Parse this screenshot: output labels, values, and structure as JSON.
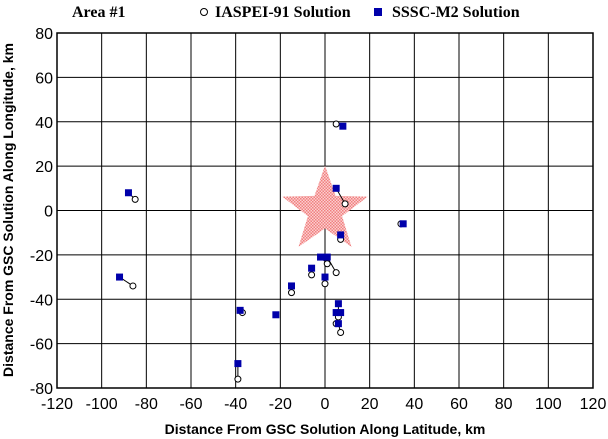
{
  "chart_data": {
    "type": "scatter",
    "title": "Area #1",
    "xlabel": "Distance From GSC Solution Along Latitude, km",
    "ylabel": "Distance From GSC Solution Along Longitude, km",
    "xlim": [
      -120,
      120
    ],
    "ylim": [
      -80,
      80
    ],
    "xticks": [
      "-120",
      "-100",
      "-80",
      "-60",
      "-40",
      "-20",
      "0",
      "20",
      "40",
      "60",
      "80",
      "100",
      "120"
    ],
    "yticks": [
      "80",
      "60",
      "40",
      "20",
      "0",
      "-20",
      "-40",
      "-60",
      "-80"
    ],
    "grid": true,
    "legend_position": "top",
    "reference_marker": {
      "shape": "star",
      "x": 0,
      "y": 0,
      "color": "#f08080"
    },
    "series": [
      {
        "name": "IASPEI-91 Solution",
        "marker": "open-circle",
        "color": "#000000",
        "points": [
          [
            5,
            39
          ],
          [
            -85,
            5
          ],
          [
            9,
            3
          ],
          [
            7,
            -13
          ],
          [
            1,
            -24
          ],
          [
            5,
            -28
          ],
          [
            -6,
            -29
          ],
          [
            0,
            -33
          ],
          [
            -15,
            -37
          ],
          [
            -86,
            -34
          ],
          [
            -37,
            -46
          ],
          [
            6,
            -48
          ],
          [
            5,
            -51
          ],
          [
            7,
            -55
          ],
          [
            -39,
            -76
          ],
          [
            34,
            -6
          ]
        ]
      },
      {
        "name": "SSSC-M2 Solution",
        "marker": "filled-square",
        "color": "#0000aa",
        "points": [
          [
            8,
            38
          ],
          [
            -88,
            8
          ],
          [
            5,
            10
          ],
          [
            7,
            -11
          ],
          [
            1,
            -21
          ],
          [
            -2,
            -21
          ],
          [
            -6,
            -26
          ],
          [
            0,
            -30
          ],
          [
            -15,
            -34
          ],
          [
            -92,
            -30
          ],
          [
            -38,
            -45
          ],
          [
            6,
            -42
          ],
          [
            7,
            -46
          ],
          [
            5,
            -46
          ],
          [
            6,
            -51
          ],
          [
            -22,
            -47
          ],
          [
            -39,
            -69
          ],
          [
            35,
            -6
          ]
        ]
      }
    ],
    "pairs": [
      [
        [
          5,
          39
        ],
        [
          8,
          38
        ]
      ],
      [
        [
          -85,
          5
        ],
        [
          -88,
          8
        ]
      ],
      [
        [
          9,
          3
        ],
        [
          5,
          10
        ]
      ],
      [
        [
          7,
          -13
        ],
        [
          7,
          -11
        ]
      ],
      [
        [
          1,
          -24
        ],
        [
          -2,
          -21
        ]
      ],
      [
        [
          5,
          -28
        ],
        [
          1,
          -21
        ]
      ],
      [
        [
          -6,
          -29
        ],
        [
          -6,
          -26
        ]
      ],
      [
        [
          0,
          -33
        ],
        [
          0,
          -30
        ]
      ],
      [
        [
          -15,
          -37
        ],
        [
          -15,
          -34
        ]
      ],
      [
        [
          -86,
          -34
        ],
        [
          -92,
          -30
        ]
      ],
      [
        [
          -37,
          -46
        ],
        [
          -38,
          -45
        ]
      ],
      [
        [
          6,
          -48
        ],
        [
          6,
          -42
        ]
      ],
      [
        [
          5,
          -51
        ],
        [
          7,
          -46
        ]
      ],
      [
        [
          7,
          -55
        ],
        [
          6,
          -51
        ]
      ],
      [
        [
          -39,
          -76
        ],
        [
          -39,
          -69
        ]
      ],
      [
        [
          34,
          -6
        ],
        [
          35,
          -6
        ]
      ]
    ]
  }
}
